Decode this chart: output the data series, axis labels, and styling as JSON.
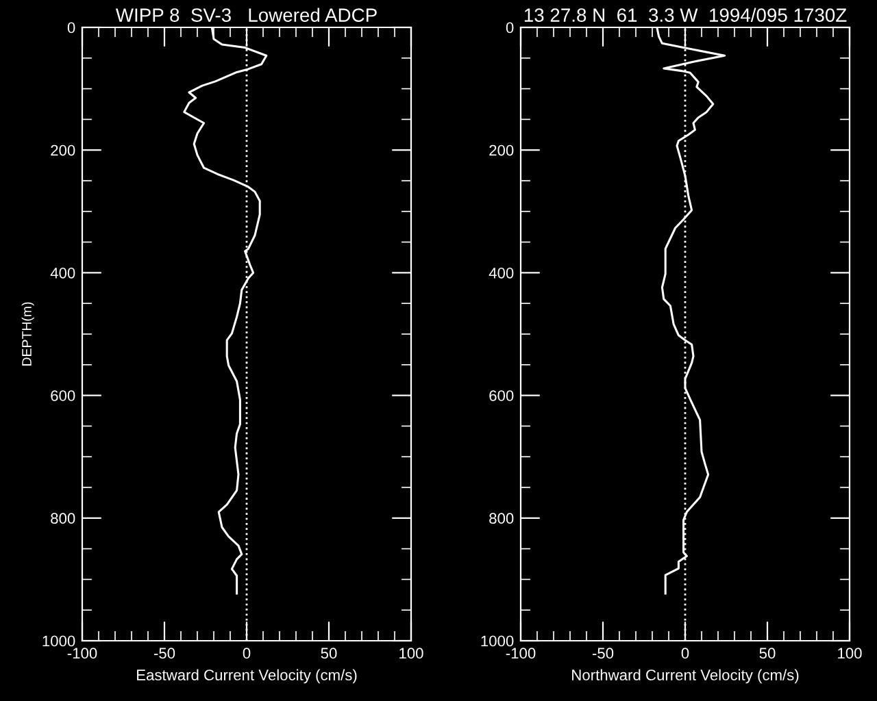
{
  "chart_data": [
    {
      "type": "line",
      "title": "WIPP 8  SV-3   Lowered ADCP",
      "xlabel": "Eastward Current Velocity (cm/s)",
      "ylabel": "DEPTH(m)",
      "xlim": [
        -100,
        100
      ],
      "xticks": [
        -100,
        -50,
        0,
        50,
        100
      ],
      "ylim": [
        1000,
        0
      ],
      "yticks": [
        0,
        200,
        400,
        600,
        800,
        1000
      ],
      "ref_lines": [
        {
          "axis": "x",
          "value": 0,
          "color": "#ffffff",
          "line_style": "dotted"
        }
      ],
      "grid": false,
      "legend": false,
      "marker": "none",
      "line_style": "solid",
      "series": [
        {
          "color": "#ffffff",
          "x": [
            -21,
            -20,
            -15,
            -1,
            12,
            9,
            1,
            -6,
            -19,
            -27,
            -35,
            -31,
            -35,
            -38,
            -32,
            -26,
            -30,
            -32,
            -30,
            -26,
            -17,
            -8,
            1,
            5,
            8,
            8,
            5,
            1,
            -1,
            2,
            4,
            1,
            -3,
            -4,
            -6,
            -9,
            -12,
            -12,
            -11,
            -6,
            -4,
            -4,
            -6,
            -7,
            -5,
            -6,
            -12,
            -17,
            -15,
            -11,
            -5,
            -3,
            -6,
            -9,
            -6,
            -6
          ],
          "values": [
            2,
            19,
            28,
            33,
            46,
            60,
            68,
            73,
            88,
            95,
            106,
            115,
            123,
            138,
            147,
            156,
            173,
            190,
            208,
            229,
            240,
            249,
            260,
            268,
            283,
            305,
            339,
            361,
            365,
            387,
            400,
            409,
            428,
            450,
            472,
            499,
            510,
            536,
            551,
            577,
            607,
            647,
            662,
            685,
            729,
            755,
            778,
            790,
            815,
            830,
            845,
            859,
            867,
            883,
            894,
            923
          ]
        }
      ]
    },
    {
      "type": "line",
      "title": "13 27.8 N  61  3.3 W  1994/095 1730Z",
      "xlabel": "Northward Current Velocity (cm/s)",
      "xlim": [
        -100,
        100
      ],
      "xticks": [
        -100,
        -50,
        0,
        50,
        100
      ],
      "ylim": [
        1000,
        0
      ],
      "yticks": [
        0,
        200,
        400,
        600,
        800,
        1000
      ],
      "ref_lines": [
        {
          "axis": "x",
          "value": 0,
          "color": "#ffffff",
          "line_style": "dotted"
        }
      ],
      "grid": false,
      "legend": false,
      "marker": "none",
      "line_style": "solid",
      "series": [
        {
          "color": "#ffffff",
          "x": [
            -17,
            -16,
            -14,
            -1,
            24,
            5,
            -13,
            -2,
            3,
            6,
            8,
            7,
            13,
            17,
            13,
            8,
            5,
            6,
            2,
            -4,
            -5,
            -3,
            0,
            2,
            4,
            -1,
            -6,
            -12,
            -12,
            -14,
            -13,
            -9,
            -7,
            -4,
            0,
            4,
            5,
            4,
            0,
            0,
            3,
            9,
            10,
            12,
            14,
            9,
            5,
            1,
            -1,
            -1,
            1,
            -4,
            -4,
            -12,
            -12
          ],
          "values": [
            2,
            15,
            26,
            33,
            46,
            56,
            67,
            71,
            74,
            83,
            89,
            97,
            112,
            125,
            138,
            147,
            156,
            167,
            175,
            185,
            193,
            212,
            242,
            275,
            298,
            313,
            327,
            361,
            402,
            424,
            443,
            454,
            484,
            502,
            510,
            517,
            536,
            547,
            573,
            588,
            606,
            640,
            692,
            711,
            729,
            766,
            778,
            790,
            803,
            856,
            862,
            871,
            882,
            893,
            923
          ]
        }
      ]
    }
  ]
}
